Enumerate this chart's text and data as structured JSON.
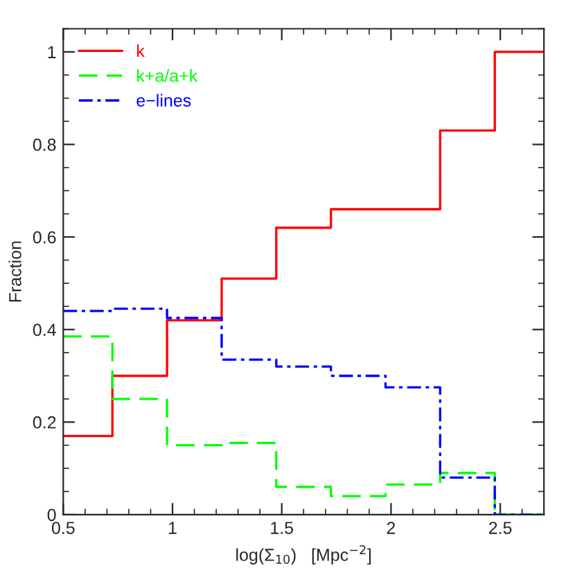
{
  "chart_data": {
    "type": "histogram",
    "xlabel": "log(Σ$_{10}$)   [Mpc$^{−2}$]",
    "ylabel": "Fraction",
    "bins": [
      0.5,
      0.725,
      0.975,
      1.225,
      1.475,
      1.725,
      1.975,
      2.225,
      2.475,
      2.7
    ],
    "series": [
      {
        "name": "k",
        "color": "#ff0000",
        "line_style": "solid",
        "values": [
          0.17,
          0.3,
          0.42,
          0.51,
          0.62,
          0.66,
          0.66,
          0.83,
          1.0
        ]
      },
      {
        "name": "k+a/a+k",
        "color": "#00ff00",
        "line_style": "dashed",
        "values": [
          0.385,
          0.25,
          0.15,
          0.155,
          0.06,
          0.04,
          0.065,
          0.09,
          0
        ]
      },
      {
        "name": "e−lines",
        "color": "#0000ff",
        "line_style": "dashdot",
        "values": [
          0.44,
          0.445,
          0.425,
          0.335,
          0.32,
          0.3,
          0.275,
          0.08,
          0
        ]
      }
    ],
    "xlim": [
      0.5,
      2.7
    ],
    "ylim": [
      0,
      1.05
    ],
    "xticks": [
      0.5,
      1,
      1.5,
      2,
      2.5
    ],
    "yticks": [
      0,
      {
        "value": 0.2,
        "label": "0.2"
      },
      {
        "value": 0.4,
        "label": "0.4"
      },
      {
        "value": 0.6,
        "label": "0.6"
      },
      {
        "value": 0.8,
        "label": "0.8"
      },
      {
        "value": 1,
        "label": "1"
      }
    ],
    "legend": "top left",
    "grid": false
  }
}
